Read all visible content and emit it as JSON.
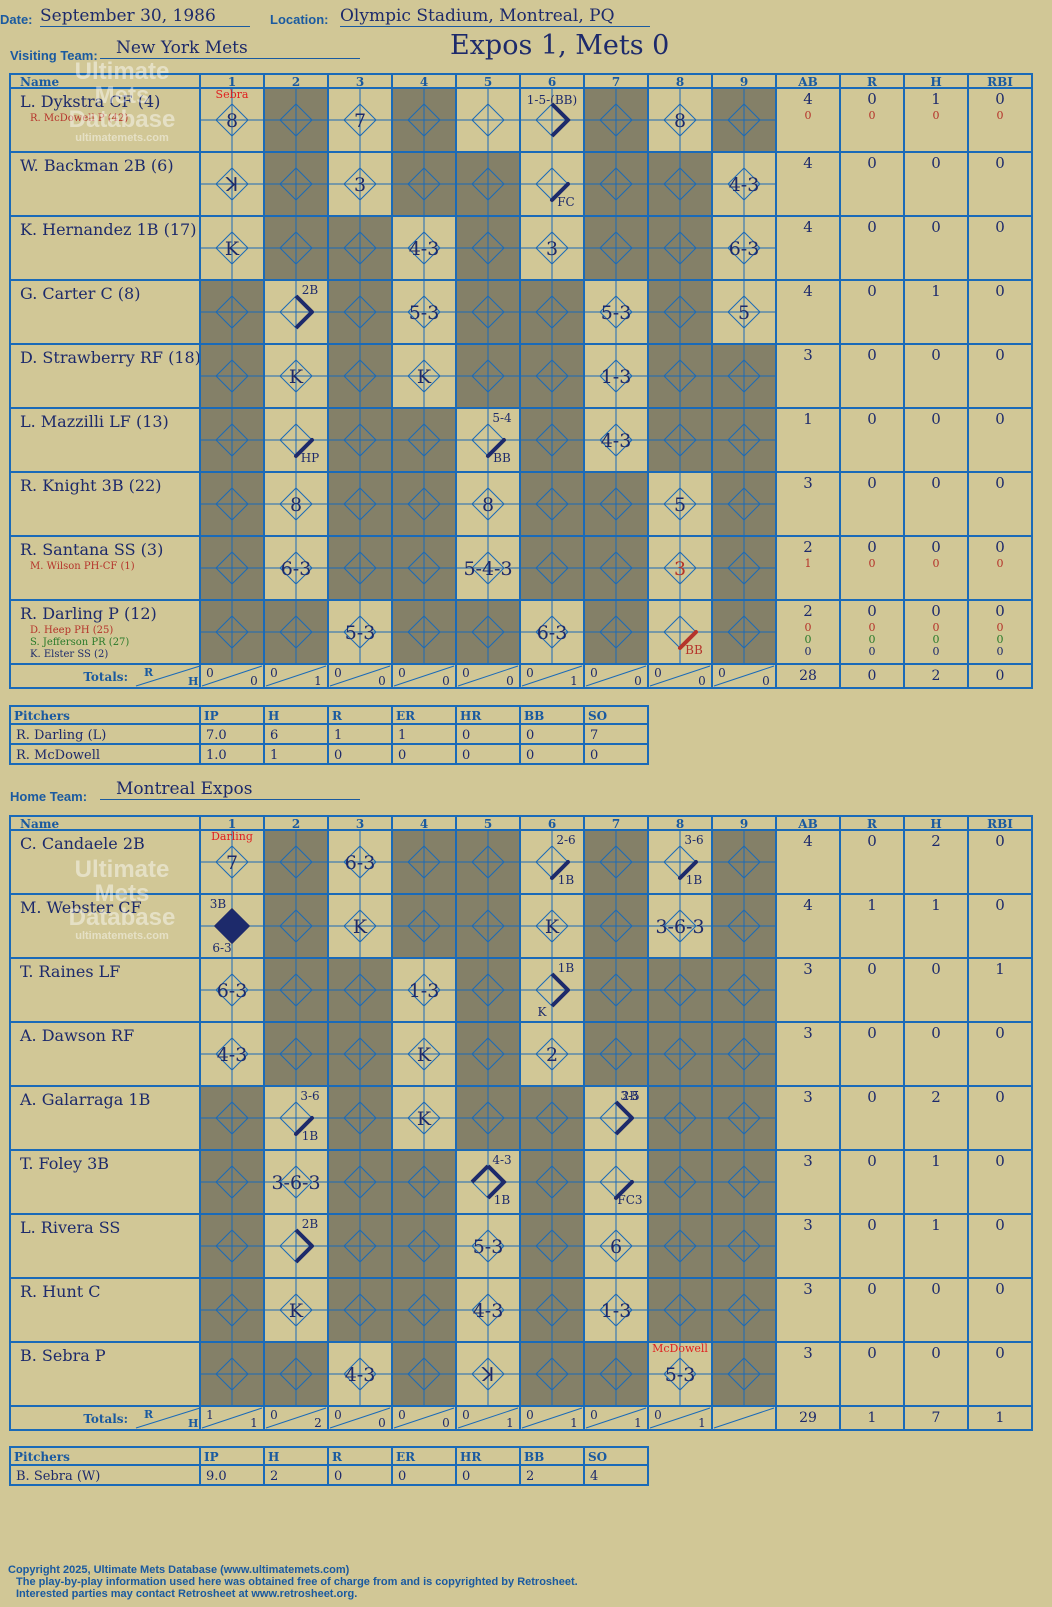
{
  "header": {
    "date_label": "Date:",
    "date": "September 30, 1986",
    "location_label": "Location:",
    "location": "Olympic Stadium, Montreal, PQ",
    "visiting_label": "Visiting Team:",
    "visiting_team": "New York Mets",
    "result": "Expos 1, Mets 0",
    "home_label": "Home Team:",
    "home_team": "Montreal Expos"
  },
  "grid_headers": {
    "name": "Name",
    "innings": [
      "1",
      "2",
      "3",
      "4",
      "5",
      "6",
      "7",
      "8",
      "9"
    ],
    "stats": [
      "AB",
      "R",
      "H",
      "RBI"
    ],
    "totals": "Totals:",
    "totals_r": "R",
    "totals_h": "H"
  },
  "visiting": {
    "rows": [
      {
        "name": "L. Dykstra CF (4)",
        "subs": [
          {
            "name": "R. McDowell P (42)",
            "color": "#b5332a"
          }
        ],
        "stats": [
          "4",
          "0",
          "1",
          "0"
        ],
        "sub_stats": [
          {
            "values": [
              "0",
              "0",
              "0",
              "0"
            ],
            "color": "#b5332a"
          }
        ],
        "shaded": [
          2,
          4,
          7,
          9
        ],
        "cells": [
          {
            "inn": 1,
            "mark": "8",
            "note": "Sebra",
            "note_color": "#e02020"
          },
          {
            "inn": 3,
            "mark": "7"
          },
          {
            "inn": 6,
            "path": "run",
            "text": "1-5-(BB)"
          },
          {
            "inn": 8,
            "mark": "8"
          }
        ]
      },
      {
        "name": "W. Backman 2B (6)",
        "subs": [],
        "stats": [
          "4",
          "0",
          "0",
          "0"
        ],
        "sub_stats": [],
        "shaded": [
          2,
          4,
          5,
          7,
          8
        ],
        "cells": [
          {
            "inn": 1,
            "mark": "ꓘ"
          },
          {
            "inn": 3,
            "mark": "3"
          },
          {
            "inn": 6,
            "path": "first",
            "text": "FC"
          },
          {
            "inn": 9,
            "mark": "4-3"
          }
        ]
      },
      {
        "name": "K. Hernandez 1B (17)",
        "subs": [],
        "stats": [
          "4",
          "0",
          "0",
          "0"
        ],
        "sub_stats": [],
        "shaded": [
          2,
          3,
          5,
          7,
          8
        ],
        "cells": [
          {
            "inn": 1,
            "mark": "K"
          },
          {
            "inn": 4,
            "mark": "4-3"
          },
          {
            "inn": 6,
            "mark": "3"
          },
          {
            "inn": 9,
            "mark": "6-3"
          }
        ]
      },
      {
        "name": "G. Carter C (8)",
        "subs": [],
        "stats": [
          "4",
          "0",
          "1",
          "0"
        ],
        "sub_stats": [],
        "shaded": [
          1,
          3,
          5,
          6,
          8
        ],
        "cells": [
          {
            "inn": 2,
            "path": "double",
            "text": "2B"
          },
          {
            "inn": 4,
            "mark": "5-3"
          },
          {
            "inn": 7,
            "mark": "5-3"
          },
          {
            "inn": 9,
            "mark": "5"
          }
        ]
      },
      {
        "name": "D. Strawberry RF (18)",
        "subs": [],
        "stats": [
          "3",
          "0",
          "0",
          "0"
        ],
        "sub_stats": [],
        "shaded": [
          1,
          3,
          5,
          6,
          8,
          9
        ],
        "cells": [
          {
            "inn": 2,
            "mark": "K"
          },
          {
            "inn": 4,
            "mark": "K"
          },
          {
            "inn": 7,
            "mark": "1-3"
          }
        ]
      },
      {
        "name": "L. Mazzilli LF (13)",
        "subs": [],
        "stats": [
          "1",
          "0",
          "0",
          "0"
        ],
        "sub_stats": [],
        "shaded": [
          1,
          3,
          4,
          6,
          8,
          9
        ],
        "cells": [
          {
            "inn": 2,
            "path": "first",
            "text": "HP"
          },
          {
            "inn": 5,
            "path": "first",
            "text": "BB",
            "top": "5-4"
          },
          {
            "inn": 7,
            "mark": "4-3"
          }
        ]
      },
      {
        "name": "R. Knight 3B (22)",
        "subs": [],
        "stats": [
          "3",
          "0",
          "0",
          "0"
        ],
        "sub_stats": [],
        "shaded": [
          1,
          3,
          4,
          6,
          7,
          9
        ],
        "cells": [
          {
            "inn": 2,
            "mark": "8"
          },
          {
            "inn": 5,
            "mark": "8"
          },
          {
            "inn": 8,
            "mark": "5"
          }
        ]
      },
      {
        "name": "R. Santana SS (3)",
        "subs": [
          {
            "name": "M. Wilson PH-CF (1)",
            "color": "#b5332a"
          }
        ],
        "stats": [
          "2",
          "0",
          "0",
          "0"
        ],
        "sub_stats": [
          {
            "values": [
              "1",
              "0",
              "0",
              "0"
            ],
            "color": "#b5332a"
          }
        ],
        "shaded": [
          1,
          3,
          4,
          6,
          7,
          9
        ],
        "cells": [
          {
            "inn": 2,
            "mark": "6-3"
          },
          {
            "inn": 5,
            "mark": "5-4-3"
          },
          {
            "inn": 8,
            "mark": "3",
            "color": "#b5332a"
          }
        ]
      },
      {
        "name": "R. Darling P (12)",
        "subs": [
          {
            "name": "D. Heep PH (25)",
            "color": "#b5332a"
          },
          {
            "name": "S. Jefferson PR (27)",
            "color": "#2a7a2a"
          },
          {
            "name": "K. Elster SS (2)",
            "color": "#1d2a6b"
          }
        ],
        "stats": [
          "2",
          "0",
          "0",
          "0"
        ],
        "sub_stats": [
          {
            "values": [
              "0",
              "0",
              "0",
              "0"
            ],
            "color": "#b5332a"
          },
          {
            "values": [
              "0",
              "0",
              "0",
              "0"
            ],
            "color": "#2a7a2a"
          },
          {
            "values": [
              "0",
              "0",
              "0",
              "0"
            ],
            "color": "#1d2a6b"
          }
        ],
        "shaded": [
          1,
          2,
          4,
          5,
          7,
          9
        ],
        "cells": [
          {
            "inn": 3,
            "mark": "5-3"
          },
          {
            "inn": 6,
            "mark": "6-3"
          },
          {
            "inn": 8,
            "path": "first",
            "text": "BB",
            "color": "#b5332a"
          }
        ]
      }
    ],
    "totals": [
      [
        "0",
        "0"
      ],
      [
        "0",
        "1"
      ],
      [
        "0",
        "0"
      ],
      [
        "0",
        "0"
      ],
      [
        "0",
        "0"
      ],
      [
        "0",
        "1"
      ],
      [
        "0",
        "0"
      ],
      [
        "0",
        "0"
      ],
      [
        "0",
        "0"
      ]
    ],
    "totals_stats": [
      "28",
      "0",
      "2",
      "0"
    ]
  },
  "visiting_pitchers": {
    "header": [
      "Pitchers",
      "IP",
      "H",
      "R",
      "ER",
      "HR",
      "BB",
      "SO"
    ],
    "rows": [
      [
        "R. Darling (L)",
        "7.0",
        "6",
        "1",
        "1",
        "0",
        "0",
        "7"
      ],
      [
        "R. McDowell",
        "1.0",
        "1",
        "0",
        "0",
        "0",
        "0",
        "0"
      ]
    ]
  },
  "home": {
    "rows": [
      {
        "name": "C. Candaele 2B",
        "subs": [],
        "stats": [
          "4",
          "0",
          "2",
          "0"
        ],
        "sub_stats": [],
        "shaded": [
          2,
          4,
          5,
          7,
          9
        ],
        "cells": [
          {
            "inn": 1,
            "mark": "7",
            "note": "Darling",
            "note_color": "#e02020"
          },
          {
            "inn": 3,
            "mark": "6-3"
          },
          {
            "inn": 6,
            "path": "first",
            "text": "1B",
            "top": "2-6"
          },
          {
            "inn": 8,
            "path": "first",
            "text": "1B",
            "top": "3-6"
          }
        ]
      },
      {
        "name": "M. Webster CF",
        "subs": [],
        "stats": [
          "4",
          "1",
          "1",
          "0"
        ],
        "sub_stats": [],
        "shaded": [
          2,
          4,
          5,
          7,
          9
        ],
        "cells": [
          {
            "inn": 1,
            "path": "run",
            "filled": true,
            "text": "3B",
            "bottom": "6-3"
          },
          {
            "inn": 3,
            "mark": "K"
          },
          {
            "inn": 6,
            "mark": "K"
          },
          {
            "inn": 8,
            "mark": "3-6-3"
          }
        ]
      },
      {
        "name": "T. Raines LF",
        "subs": [],
        "stats": [
          "3",
          "0",
          "0",
          "1"
        ],
        "sub_stats": [],
        "shaded": [
          2,
          3,
          5,
          7,
          8,
          9
        ],
        "cells": [
          {
            "inn": 1,
            "mark": "6-3"
          },
          {
            "inn": 4,
            "mark": "1-3"
          },
          {
            "inn": 6,
            "path": "double",
            "text": "1B",
            "bottom": "K"
          }
        ]
      },
      {
        "name": "A. Dawson RF",
        "subs": [],
        "stats": [
          "3",
          "0",
          "0",
          "0"
        ],
        "sub_stats": [],
        "shaded": [
          2,
          3,
          5,
          7,
          8,
          9
        ],
        "cells": [
          {
            "inn": 1,
            "mark": "4-3"
          },
          {
            "inn": 4,
            "mark": "K"
          },
          {
            "inn": 6,
            "mark": "2"
          }
        ]
      },
      {
        "name": "A. Galarraga 1B",
        "subs": [],
        "stats": [
          "3",
          "0",
          "2",
          "0"
        ],
        "sub_stats": [],
        "shaded": [
          1,
          3,
          5,
          6,
          8,
          9
        ],
        "cells": [
          {
            "inn": 2,
            "path": "first",
            "text": "1B",
            "top": "3-6"
          },
          {
            "inn": 4,
            "mark": "K"
          },
          {
            "inn": 7,
            "path": "double",
            "text": "2B",
            "top": "3-5"
          }
        ]
      },
      {
        "name": "T. Foley 3B",
        "subs": [],
        "stats": [
          "3",
          "0",
          "1",
          "0"
        ],
        "sub_stats": [],
        "shaded": [
          1,
          3,
          4,
          6,
          8,
          9
        ],
        "cells": [
          {
            "inn": 2,
            "mark": "3-6-3"
          },
          {
            "inn": 5,
            "path": "second",
            "text": "1B",
            "top": "4-3"
          },
          {
            "inn": 7,
            "path": "first",
            "text": "FC3"
          }
        ]
      },
      {
        "name": "L. Rivera SS",
        "subs": [],
        "stats": [
          "3",
          "0",
          "1",
          "0"
        ],
        "sub_stats": [],
        "shaded": [
          1,
          3,
          4,
          6,
          8,
          9
        ],
        "cells": [
          {
            "inn": 2,
            "path": "double",
            "text": "2B"
          },
          {
            "inn": 5,
            "mark": "5-3"
          },
          {
            "inn": 7,
            "mark": "6"
          }
        ]
      },
      {
        "name": "R. Hunt C",
        "subs": [],
        "stats": [
          "3",
          "0",
          "0",
          "0"
        ],
        "sub_stats": [],
        "shaded": [
          1,
          3,
          4,
          6,
          8,
          9
        ],
        "cells": [
          {
            "inn": 2,
            "mark": "K"
          },
          {
            "inn": 5,
            "mark": "4-3"
          },
          {
            "inn": 7,
            "mark": "1-3"
          }
        ]
      },
      {
        "name": "B. Sebra P",
        "subs": [],
        "stats": [
          "3",
          "0",
          "0",
          "0"
        ],
        "sub_stats": [],
        "shaded": [
          1,
          2,
          4,
          6,
          7,
          9
        ],
        "cells": [
          {
            "inn": 3,
            "mark": "4-3"
          },
          {
            "inn": 5,
            "mark": "ꓘ"
          },
          {
            "inn": 8,
            "mark": "5-3",
            "note": "McDowell",
            "note_color": "#e02020"
          }
        ]
      }
    ],
    "totals": [
      [
        "1",
        "1"
      ],
      [
        "0",
        "2"
      ],
      [
        "0",
        "0"
      ],
      [
        "0",
        "0"
      ],
      [
        "0",
        "1"
      ],
      [
        "0",
        "1"
      ],
      [
        "0",
        "1"
      ],
      [
        "0",
        "1"
      ],
      [
        "",
        ""
      ]
    ],
    "totals_stats": [
      "29",
      "1",
      "7",
      "1"
    ]
  },
  "home_pitchers": {
    "header": [
      "Pitchers",
      "IP",
      "H",
      "R",
      "ER",
      "HR",
      "BB",
      "SO"
    ],
    "rows": [
      [
        "B. Sebra (W)",
        "9.0",
        "2",
        "0",
        "0",
        "0",
        "2",
        "4"
      ]
    ]
  },
  "watermark": {
    "line1": "Ultimate",
    "line2": "Mets",
    "line3": "Database",
    "line4": "ultimatemets.com"
  },
  "footer": {
    "line1": "Copyright 2025, Ultimate Mets Database (www.ultimatemets.com)",
    "line2": "The play-by-play information used here was obtained free of charge from and is copyrighted by Retrosheet.",
    "line3": "Interested parties may contact Retrosheet at www.retrosheet.org."
  },
  "colors": {
    "grid": "#1a6ab8",
    "shade": "#848068",
    "paper": "#d1c796",
    "ink": "#1d2a6b"
  }
}
